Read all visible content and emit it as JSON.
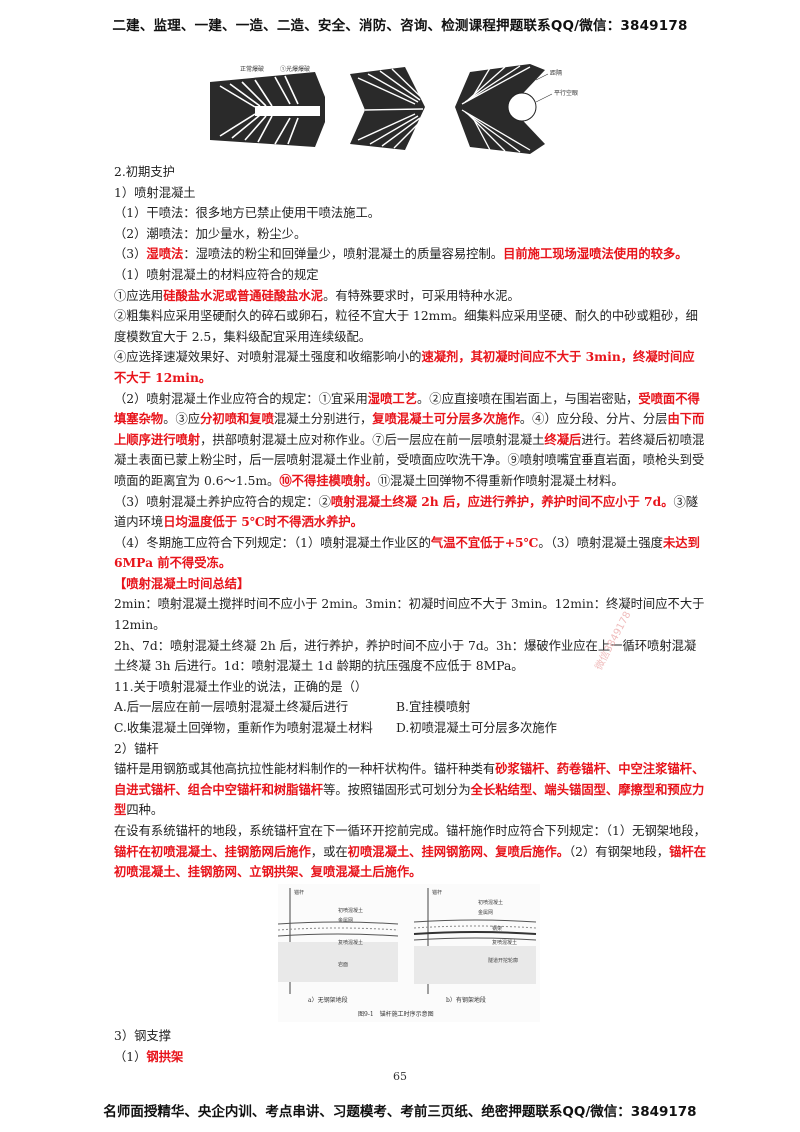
{
  "header": {
    "text": "二建、监理、一建、一造、二造、安全、消防、咨询、检测课程押题联系QQ/微信：3849178"
  },
  "footer": {
    "text": "名师面授精华、央企内训、考点串讲、习题模考、考前三页纸、绝密押题联系QQ/微信：3849178"
  },
  "page_number": "65",
  "figure_top": {
    "label1": "正常爆破",
    "label2": "①光爆爆破",
    "label3": "距隔",
    "label4": "平行空眼"
  },
  "section": {
    "title": "2.初期支护",
    "s1_title": "1）喷射混凝土",
    "l1": "（1）干喷法：很多地方已禁止使用干喷法施工。",
    "l2": "（2）潮喷法：加少量水，粉尘少。",
    "l3a": "（3）",
    "l3b": "湿喷法",
    "l3c": "：湿喷法的粉尘和回弹量少，喷射混凝土的质量容易控制。",
    "l3d": "目前施工现场湿喷法使用的较多。",
    "m_title": "（1）喷射混凝土的材料应符合的规定",
    "m1a": "①应选用",
    "m1b": "硅酸盐水泥或普通硅酸盐水泥",
    "m1c": "。有特殊要求时，可采用特种水泥。",
    "m2": "②粗集料应采用坚硬耐久的碎石或卵石，粒径不宜大于 12mm。细集料应采用坚硬、耐久的中砂或粗砂，细度模数宜大于 2.5，集料级配宜采用连续级配。",
    "m4a": "④应选择速凝效果好、对喷射混凝土强度和收缩影响小的",
    "m4b": "速凝剂，其初凝时间应不大于 3min，终凝时间应不大于 12min。",
    "w_a": "（2）喷射混凝土作业应符合的规定：①宜采用",
    "w_b": "湿喷工艺",
    "w_c": "。②应直接喷在围岩面上，与围岩密贴，",
    "w_d": "受喷面不得填塞杂物",
    "w_e": "。③应",
    "w_f": "分初喷和复喷",
    "w_g": "混凝土分别进行，",
    "w_h": "复喷混凝土可分层多次施作",
    "w_i": "。④）应分段、分片、分层",
    "w_j": "由下而上顺序进行喷射",
    "w_k": "，拱部喷射混凝土应对称作业。⑦后一层应在前一层喷射混凝土",
    "w_l": "终凝后",
    "w_m": "进行。若终凝后初喷混凝土表面已蒙上粉尘时，后一层喷射混凝土作业前，受喷面应吹洗干净。⑨喷射喷嘴宜垂直岩面，喷枪头到受喷面的距离宜为 0.6～1.5m。",
    "w_n": "⑩不得挂模喷射。",
    "w_o": "⑪混凝土回弹物不得重新作喷射混凝土材料。",
    "c_a": "（3）喷射混凝土养护应符合的规定：②",
    "c_b": "喷射混凝土终凝 2h 后，应进行养护，养护时间不应小于 7d。",
    "c_c": "③隧道内环境",
    "c_d": "日均温度低于 5℃时不得洒水养护。",
    "wi_a": "（4）冬期施工应符合下列规定：（1）喷射混凝土作业区的",
    "wi_b": "气温不宜低于+5℃",
    "wi_c": "。（3）喷射混凝土强度",
    "wi_d": "未达到 6MPa 前不得受冻。",
    "sum_title": "【喷射混凝土时间总结】",
    "sum1": "2min：喷射混凝土搅拌时间不应小于 2min。3min：初凝时间应不大于 3min。12min：终凝时间应不大于 12min。",
    "sum2": "2h、7d：喷射混凝土终凝 2h 后，进行养护，养护时间不应小于 7d。3h：爆破作业应在上一循环喷射混凝土终凝 3h 后进行。1d：喷射混凝土 1d 龄期的抗压强度不应低于 8MPa。",
    "q": "11.关于喷射混凝土作业的说法，正确的是（）",
    "qa": "A.后一层应在前一层喷射混凝土终凝后进行",
    "qb": "B.宜挂模喷射",
    "qc": "C.收集混凝土回弹物，重新作为喷射混凝土材料",
    "qd": "D.初喷混凝土可分层多次施作",
    "s2_title": "2）锚杆",
    "a1a": "锚杆是用钢筋或其他高抗拉性能材料制作的一种杆状构件。锚杆种类有",
    "a1b": "砂浆锚杆、药卷锚杆、中空注浆锚杆、自进式锚杆、组合中空锚杆和树脂锚杆",
    "a1c": "等。按照锚固形式可划分为",
    "a1d": "全长粘结型、端头锚固型、摩擦型和预应力型",
    "a1e": "四种。",
    "a2a": "在设有系统锚杆的地段，系统锚杆宜在下一循环开挖前完成。锚杆施作时应符合下列规定：（1）无钢架地段，",
    "a2b": "锚杆在初喷混凝土、挂钢筋网后施作",
    "a2c": "，或在",
    "a2d": "初喷混凝土、挂网钢筋网、复喷后施作。",
    "a2e": "（2）有钢架地段，",
    "a2f": "锚杆在初喷混凝土、挂钢筋网、立钢拱架、复喷混凝土后施作。",
    "s3_title": "3）钢支撑",
    "s3_1a": "（1）",
    "s3_1b": "钢拱架"
  },
  "figure_mid": {
    "cap_a": "a）无钢架地段",
    "cap_b": "b）有钢架地段",
    "caption": "图9-1　锚杆施工时序示意图",
    "lbl_l1": "锚杆",
    "lbl_l2": "初喷混凝土",
    "lbl_l3": "金属网",
    "lbl_l4": "复喷混凝土",
    "lbl_l5": "岩面",
    "lbl_r1": "锚杆",
    "lbl_r2": "初喷混凝土",
    "lbl_r3": "金属网",
    "lbl_r4": "钢架",
    "lbl_r5": "复喷混凝土",
    "lbl_r6": "隧道开挖轮廓"
  },
  "watermark": "微信3849178"
}
